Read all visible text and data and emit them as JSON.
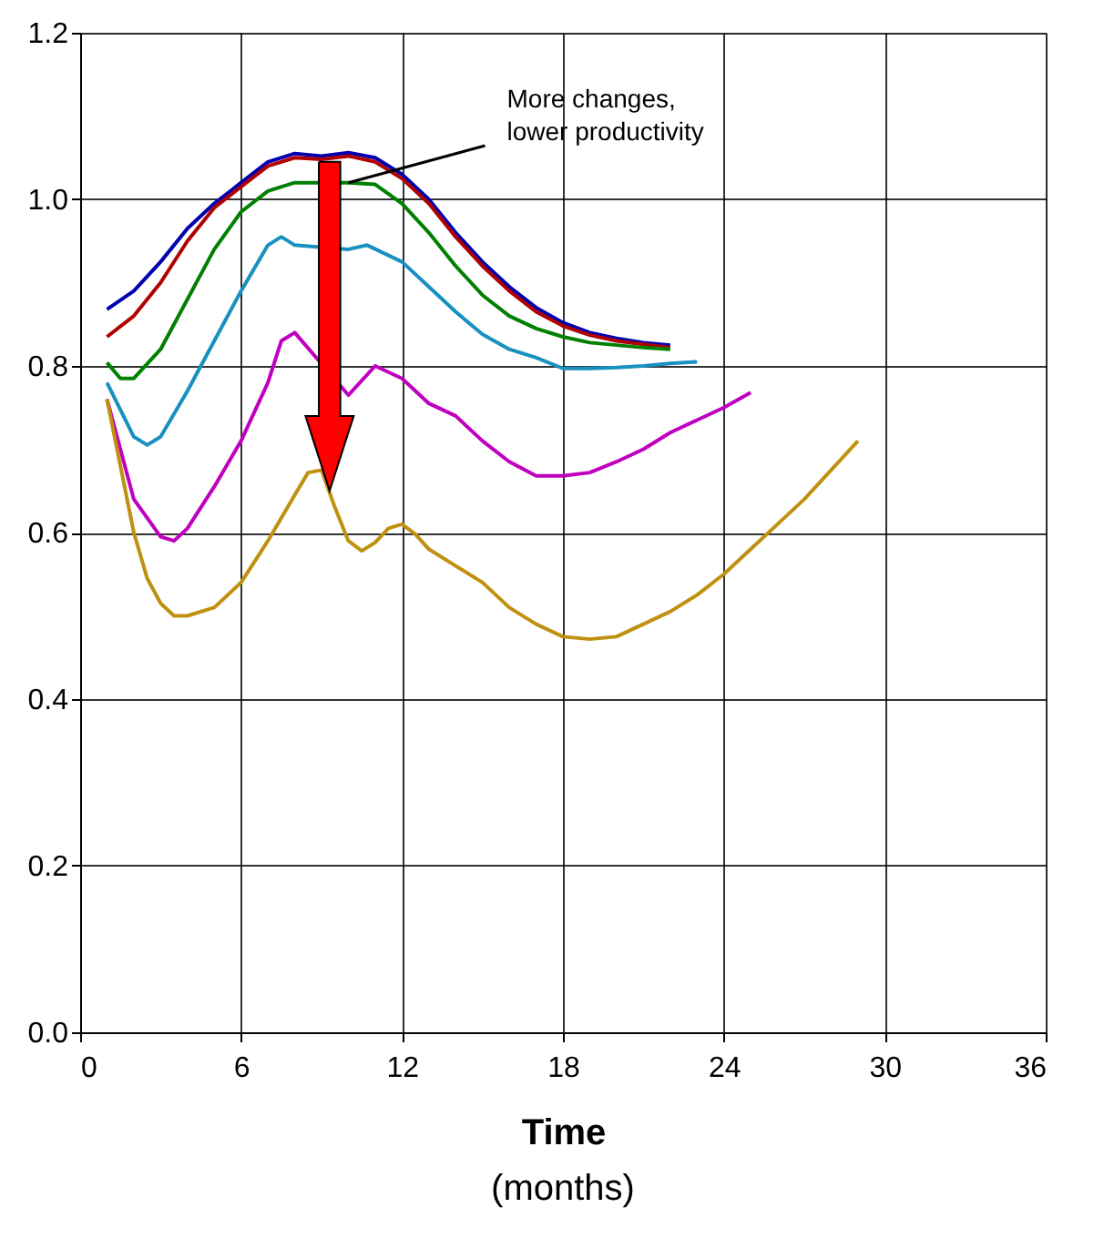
{
  "chart_data": {
    "type": "line",
    "xlabel": "Time",
    "annotations": [
      {
        "text": "More changes,\nlower productivity",
        "x": 10,
        "y": 1.02
      },
      "(months)"
    ],
    "xlim": [
      0,
      36
    ],
    "xticks": [
      0,
      6,
      12,
      18,
      24,
      30,
      36
    ],
    "ylim": [
      0,
      1.2
    ],
    "yticks": [
      {
        "value": 0,
        "label": "0.0"
      },
      0.2,
      0.4,
      0.6,
      0.8,
      {
        "value": 1,
        "label": "1.0"
      },
      1.2
    ],
    "grid": true,
    "series": [
      {
        "color": "#0000b0",
        "x": [
          1,
          2,
          3,
          4,
          5,
          6,
          7,
          8,
          9,
          10,
          11,
          12,
          13,
          14,
          15,
          16,
          17,
          18,
          19,
          20,
          21,
          22
        ],
        "values": [
          0.868,
          0.89,
          0.925,
          0.965,
          0.995,
          1.02,
          1.045,
          1.055,
          1.052,
          1.056,
          1.05,
          1.03,
          1.0,
          0.96,
          0.925,
          0.895,
          0.87,
          0.852,
          0.84,
          0.833,
          0.828,
          0.825
        ]
      },
      {
        "color": "#b00000",
        "x": [
          1,
          2,
          3,
          4,
          5,
          6,
          7,
          8,
          9,
          10,
          11,
          12,
          13,
          14,
          15,
          16,
          17,
          18,
          19,
          20,
          21,
          22
        ],
        "values": [
          0.835,
          0.86,
          0.9,
          0.95,
          0.99,
          1.015,
          1.04,
          1.05,
          1.048,
          1.052,
          1.045,
          1.025,
          0.995,
          0.955,
          0.92,
          0.89,
          0.865,
          0.848,
          0.837,
          0.83,
          0.826,
          0.822
        ]
      },
      {
        "color": "#008000",
        "x": [
          1,
          1.5,
          2,
          3,
          4,
          5,
          6,
          7,
          8,
          9,
          10,
          11,
          12,
          13,
          14,
          15,
          16,
          17,
          18,
          19,
          20,
          21,
          22
        ],
        "values": [
          0.804,
          0.785,
          0.785,
          0.82,
          0.88,
          0.94,
          0.985,
          1.01,
          1.02,
          null,
          1.02,
          1.018,
          0.995,
          0.96,
          0.92,
          0.885,
          0.86,
          0.845,
          0.835,
          0.828,
          0.825,
          0.822,
          0.82
        ]
      },
      {
        "color": "#1890c0",
        "x": [
          1,
          2,
          2.5,
          3,
          4,
          5,
          6,
          7,
          7.5,
          8,
          9,
          10,
          10.7,
          12,
          13,
          14,
          15,
          16,
          17,
          18,
          19,
          20,
          21,
          22,
          23
        ],
        "values": [
          0.78,
          0.715,
          0.705,
          0.715,
          0.77,
          0.83,
          0.89,
          0.945,
          0.955,
          0.945,
          null,
          0.94,
          0.945,
          0.925,
          0.895,
          0.865,
          0.838,
          0.82,
          0.81,
          0.797,
          0.797,
          0.798,
          0.8,
          0.803,
          0.805
        ]
      },
      {
        "color": "#c000c0",
        "x": [
          1,
          2,
          3,
          3.5,
          4,
          5,
          6,
          7,
          7.5,
          8,
          9,
          9.5,
          10,
          11,
          12,
          13,
          14,
          15,
          16,
          17,
          18,
          19,
          20,
          21,
          22,
          23,
          24,
          25
        ],
        "values": [
          0.76,
          0.64,
          0.595,
          0.59,
          0.605,
          0.655,
          0.71,
          0.78,
          0.83,
          0.84,
          null,
          null,
          0.765,
          0.8,
          0.785,
          0.755,
          0.74,
          0.71,
          0.685,
          0.668,
          0.668,
          0.672,
          0.685,
          0.7,
          0.72,
          0.735,
          0.75,
          0.768
        ]
      },
      {
        "color": "#c09010",
        "x": [
          1,
          2,
          2.5,
          3,
          3.5,
          4,
          5,
          6,
          7,
          8,
          8.5,
          9,
          9.5,
          10,
          10.5,
          11,
          11.5,
          12,
          12.5,
          13,
          14,
          15,
          16,
          17,
          18,
          19,
          20,
          21,
          22,
          23,
          24,
          25,
          26,
          27,
          28,
          29
        ],
        "values": [
          0.76,
          0.6,
          0.545,
          0.515,
          0.5,
          0.5,
          0.51,
          0.54,
          0.59,
          0.645,
          0.672,
          0.675,
          0.63,
          0.59,
          0.578,
          0.588,
          0.605,
          0.61,
          0.598,
          0.58,
          0.56,
          0.54,
          0.51,
          0.49,
          0.475,
          0.472,
          0.475,
          0.49,
          0.505,
          0.525,
          0.55,
          0.58,
          0.61,
          0.64,
          0.675,
          0.71
        ]
      }
    ]
  }
}
